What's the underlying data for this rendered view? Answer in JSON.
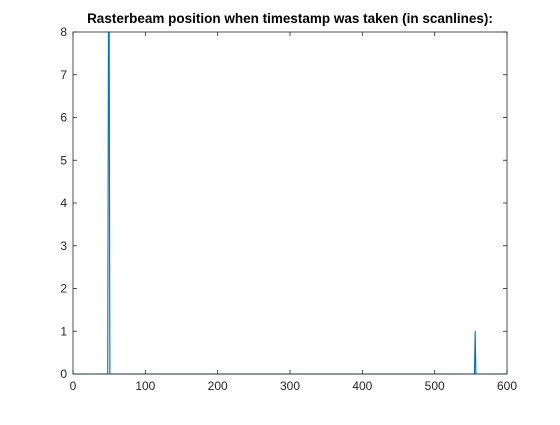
{
  "chart_data": {
    "type": "line",
    "title": "Rasterbeam position when timestamp was taken (in scanlines):",
    "xlabel": "",
    "ylabel": "",
    "xlim": [
      0,
      600
    ],
    "ylim": [
      0,
      8
    ],
    "xticks": [
      0,
      100,
      200,
      300,
      400,
      500,
      600
    ],
    "yticks": [
      0,
      1,
      2,
      3,
      4,
      5,
      6,
      7,
      8
    ],
    "grid": false,
    "series": [
      {
        "color": "#0072BD",
        "x": [
          0,
          48,
          49,
          50,
          51,
          52,
          554,
          555,
          556,
          557,
          558,
          600
        ],
        "y": [
          0,
          0,
          8,
          8,
          0,
          0,
          0,
          0,
          1,
          0,
          0,
          0
        ]
      }
    ]
  }
}
